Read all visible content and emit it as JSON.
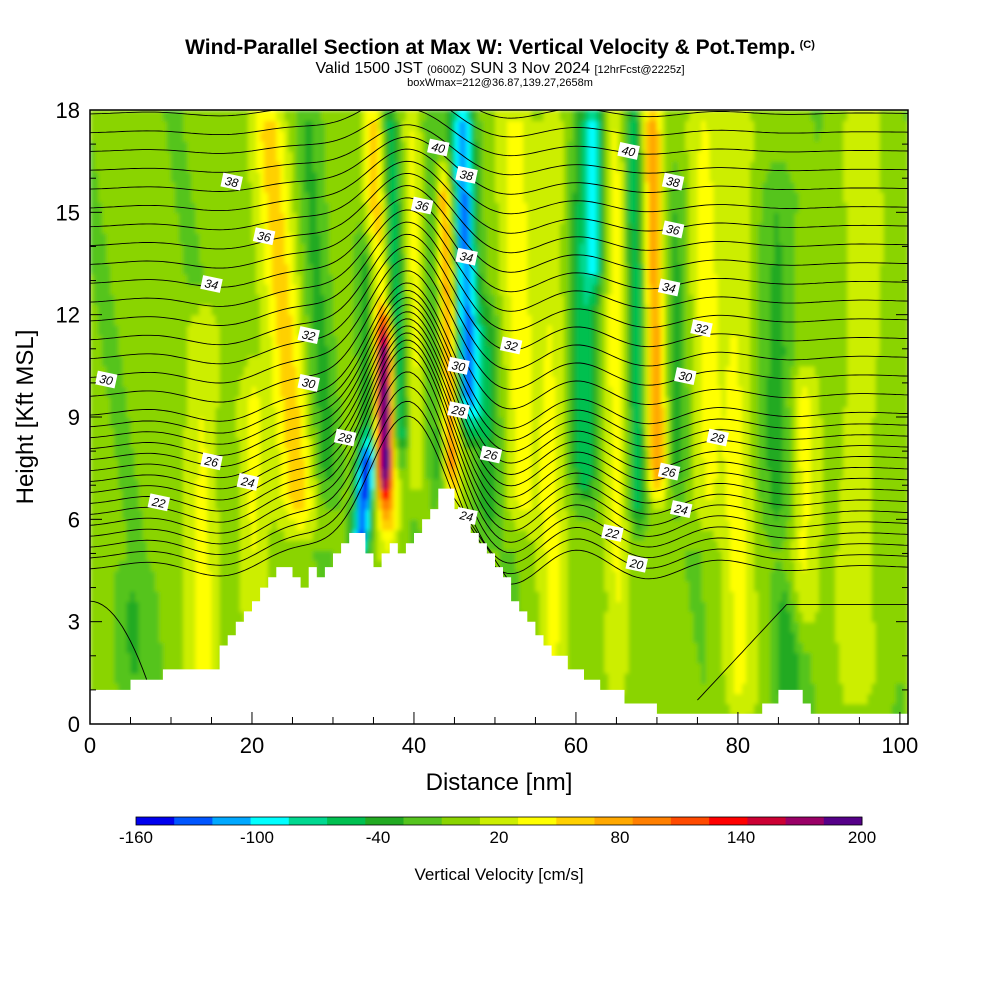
{
  "header": {
    "title": "Wind-Parallel Section at Max W: Vertical Velocity & Pot.Temp.",
    "copyright": "(C)",
    "valid_prefix": "Valid 1500 JST",
    "valid_utc": "(0600Z)",
    "valid_date": "SUN 3 Nov 2024",
    "forecast": "[12hrFcst@2225z]",
    "box_info": "boxWmax=212@36.87,139.27,2658m"
  },
  "chart_data": {
    "type": "heatmap",
    "title": "Wind-Parallel Section at Max W: Vertical Velocity & Pot.Temp.",
    "xlabel": "Distance [nm]",
    "ylabel": "Height [Kft MSL]",
    "xlim": [
      0,
      101
    ],
    "ylim": [
      0,
      18
    ],
    "x_ticks": [
      0,
      20,
      40,
      60,
      80,
      100
    ],
    "y_ticks": [
      0,
      3,
      6,
      9,
      12,
      15,
      18
    ],
    "colorbar": {
      "title": "Vertical Velocity [cm/s]",
      "tick_labels": [
        "-160",
        "-100",
        "-40",
        "20",
        "80",
        "140",
        "200"
      ],
      "tick_values": [
        -160,
        -100,
        -40,
        20,
        80,
        140,
        200
      ],
      "bins": [
        -160,
        -140,
        -120,
        -100,
        -80,
        -60,
        -40,
        -20,
        0,
        20,
        40,
        60,
        80,
        100,
        120,
        140,
        160,
        180,
        200
      ],
      "colors": [
        "#0000ee",
        "#0055ff",
        "#00a8ff",
        "#00ffff",
        "#00d890",
        "#00c050",
        "#22aa22",
        "#55c41e",
        "#8ad400",
        "#ccee00",
        "#ffff00",
        "#ffd000",
        "#ffa800",
        "#ff7f00",
        "#ff4a00",
        "#ff0000",
        "#cc0033",
        "#990066",
        "#550088"
      ]
    },
    "terrain": [
      [
        0,
        1
      ],
      [
        5,
        1
      ],
      [
        5,
        1.3
      ],
      [
        9,
        1.3
      ],
      [
        9,
        1.6
      ],
      [
        16,
        1.6
      ],
      [
        16,
        2.3
      ],
      [
        17,
        2.3
      ],
      [
        17,
        2.6
      ],
      [
        18,
        2.6
      ],
      [
        18,
        3
      ],
      [
        19,
        3
      ],
      [
        19,
        3.3
      ],
      [
        20,
        3.3
      ],
      [
        20,
        3.6
      ],
      [
        21,
        3.6
      ],
      [
        21,
        4
      ],
      [
        22,
        4
      ],
      [
        22,
        4.3
      ],
      [
        23,
        4.3
      ],
      [
        23,
        4.6
      ],
      [
        25,
        4.6
      ],
      [
        25,
        4.3
      ],
      [
        26,
        4.3
      ],
      [
        26,
        4
      ],
      [
        27,
        4
      ],
      [
        27,
        4.6
      ],
      [
        28,
        4.6
      ],
      [
        28,
        4.3
      ],
      [
        29,
        4.3
      ],
      [
        29,
        4.6
      ],
      [
        30,
        4.6
      ],
      [
        30,
        5
      ],
      [
        31,
        5
      ],
      [
        31,
        5.3
      ],
      [
        32,
        5.3
      ],
      [
        32,
        5.6
      ],
      [
        34,
        5.6
      ],
      [
        34,
        5
      ],
      [
        35,
        5
      ],
      [
        35,
        4.6
      ],
      [
        36,
        4.6
      ],
      [
        36,
        5
      ],
      [
        37,
        5
      ],
      [
        37,
        5.3
      ],
      [
        38,
        5.3
      ],
      [
        38,
        5
      ],
      [
        39,
        5
      ],
      [
        39,
        5.3
      ],
      [
        40,
        5.3
      ],
      [
        40,
        5.6
      ],
      [
        41,
        5.6
      ],
      [
        41,
        6
      ],
      [
        42,
        6
      ],
      [
        42,
        6.3
      ],
      [
        43,
        6.3
      ],
      [
        43,
        6.9
      ],
      [
        45,
        6.9
      ],
      [
        45,
        6.3
      ],
      [
        46,
        6.3
      ],
      [
        46,
        6
      ],
      [
        47,
        6
      ],
      [
        47,
        5.6
      ],
      [
        48,
        5.6
      ],
      [
        48,
        5.3
      ],
      [
        49,
        5.3
      ],
      [
        49,
        5
      ],
      [
        50,
        5
      ],
      [
        50,
        4.6
      ],
      [
        51,
        4.6
      ],
      [
        51,
        4.3
      ],
      [
        52,
        4.3
      ],
      [
        52,
        3.6
      ],
      [
        53,
        3.6
      ],
      [
        53,
        3.3
      ],
      [
        54,
        3.3
      ],
      [
        54,
        3
      ],
      [
        55,
        3
      ],
      [
        55,
        2.6
      ],
      [
        56,
        2.6
      ],
      [
        56,
        2.3
      ],
      [
        57,
        2.3
      ],
      [
        57,
        2
      ],
      [
        59,
        2
      ],
      [
        59,
        1.6
      ],
      [
        61,
        1.6
      ],
      [
        61,
        1.3
      ],
      [
        63,
        1.3
      ],
      [
        63,
        1
      ],
      [
        66,
        1
      ],
      [
        66,
        0.6
      ],
      [
        70,
        0.6
      ],
      [
        70,
        0.3
      ],
      [
        83,
        0.3
      ],
      [
        83,
        0.6
      ],
      [
        85,
        0.6
      ],
      [
        85,
        1
      ],
      [
        88,
        1
      ],
      [
        88,
        0.6
      ],
      [
        89,
        0.6
      ],
      [
        89,
        0.3
      ],
      [
        101,
        0.3
      ]
    ],
    "theta_contour_labels": [
      {
        "text": "38",
        "x": 17.5,
        "y": 15.9
      },
      {
        "text": "36",
        "x": 21.5,
        "y": 14.3
      },
      {
        "text": "34",
        "x": 15,
        "y": 12.9
      },
      {
        "text": "32",
        "x": 27,
        "y": 11.4
      },
      {
        "text": "30",
        "x": 2,
        "y": 10.1
      },
      {
        "text": "30",
        "x": 27,
        "y": 10
      },
      {
        "text": "28",
        "x": 31.5,
        "y": 8.4
      },
      {
        "text": "26",
        "x": 15,
        "y": 7.7
      },
      {
        "text": "24",
        "x": 19.5,
        "y": 7.1
      },
      {
        "text": "22",
        "x": 8.5,
        "y": 6.5
      },
      {
        "text": "40",
        "x": 43,
        "y": 16.9
      },
      {
        "text": "38",
        "x": 46.5,
        "y": 16.1
      },
      {
        "text": "36",
        "x": 41,
        "y": 15.2
      },
      {
        "text": "34",
        "x": 46.5,
        "y": 13.7
      },
      {
        "text": "32",
        "x": 52,
        "y": 11.1
      },
      {
        "text": "30",
        "x": 45.5,
        "y": 10.5
      },
      {
        "text": "28",
        "x": 45.5,
        "y": 9.2
      },
      {
        "text": "26",
        "x": 49.5,
        "y": 7.9
      },
      {
        "text": "24",
        "x": 46.5,
        "y": 6.1
      },
      {
        "text": "40",
        "x": 66.5,
        "y": 16.8
      },
      {
        "text": "38",
        "x": 72,
        "y": 15.9
      },
      {
        "text": "36",
        "x": 72,
        "y": 14.5
      },
      {
        "text": "34",
        "x": 71.5,
        "y": 12.8
      },
      {
        "text": "32",
        "x": 75.5,
        "y": 11.6
      },
      {
        "text": "30",
        "x": 73.5,
        "y": 10.2
      },
      {
        "text": "28",
        "x": 77.5,
        "y": 8.4
      },
      {
        "text": "26",
        "x": 71.5,
        "y": 7.4
      },
      {
        "text": "24",
        "x": 73,
        "y": 6.3
      },
      {
        "text": "22",
        "x": 64.5,
        "y": 5.6
      },
      {
        "text": "20",
        "x": 67.5,
        "y": 4.7
      }
    ]
  }
}
